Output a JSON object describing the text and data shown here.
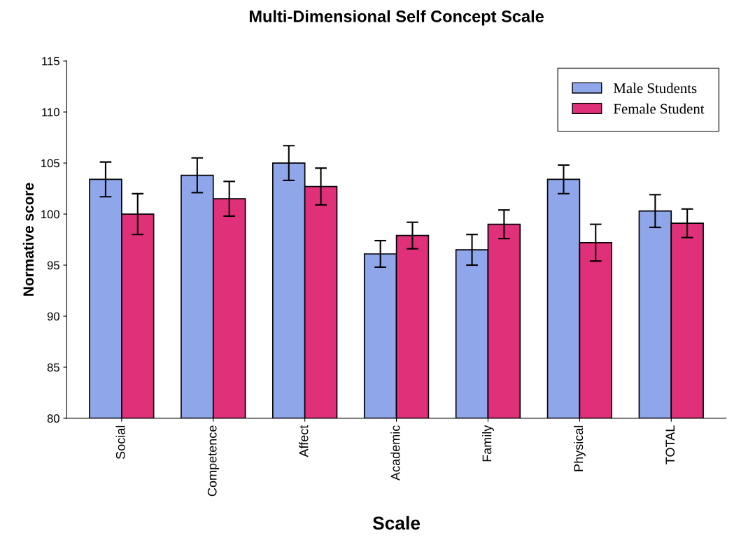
{
  "chart_data": {
    "type": "bar",
    "title": "Multi-Dimensional Self Concept Scale",
    "xlabel": "Scale",
    "ylabel": "Normative score",
    "categories": [
      "Social",
      "Competence",
      "Affect",
      "Academic",
      "Family",
      "Physical",
      "TOTAL"
    ],
    "series": [
      {
        "name": "Male Students",
        "color": "#8fa6ea",
        "values": [
          103.4,
          103.8,
          105,
          96.1,
          96.5,
          103.4,
          100.3
        ],
        "errors": [
          1.7,
          1.7,
          1.7,
          1.3,
          1.5,
          1.4,
          1.6
        ]
      },
      {
        "name": "Female Student",
        "color": "#e0307a",
        "values": [
          100,
          101.5,
          102.7,
          97.9,
          99,
          97.2,
          99.1
        ],
        "errors": [
          2,
          1.7,
          1.8,
          1.3,
          1.4,
          1.8,
          1.4
        ]
      }
    ],
    "ylim": [
      80,
      115
    ],
    "yticks": [
      80,
      85,
      90,
      95,
      100,
      105,
      110,
      115
    ],
    "grid": false,
    "legend": "top right"
  }
}
